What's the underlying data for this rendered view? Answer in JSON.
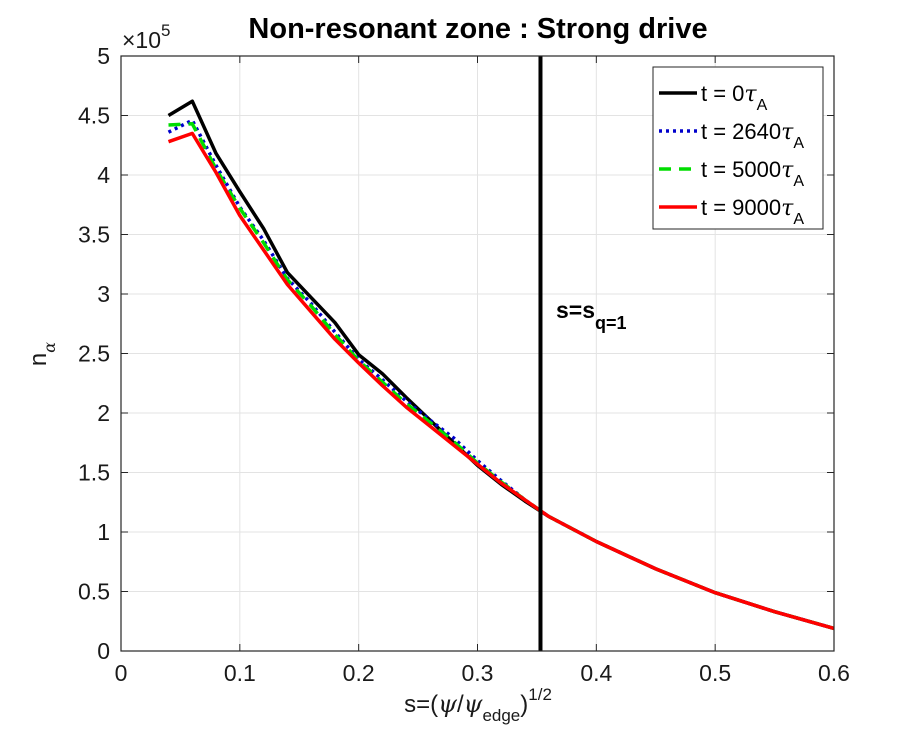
{
  "chart_data": {
    "type": "line",
    "title": "Non-resonant zone : Strong drive",
    "xlabel": {
      "base": "s=(",
      "psi": "ψ",
      "slash": "/",
      "psi2": "ψ",
      "sub": "edge",
      "close": ")",
      "sup": "1/2"
    },
    "ylabel": {
      "base": "n",
      "sub": "α"
    },
    "y_exponent": {
      "times": "×10",
      "power": "5"
    },
    "xlim": [
      0,
      0.6
    ],
    "ylim": [
      0,
      5
    ],
    "xticks": [
      0,
      0.1,
      0.2,
      0.3,
      0.4,
      0.5,
      0.6
    ],
    "xtick_labels": [
      "0",
      "0.1",
      "0.2",
      "0.3",
      "0.4",
      "0.5",
      "0.6"
    ],
    "yticks": [
      0,
      0.5,
      1,
      1.5,
      2,
      2.5,
      3,
      3.5,
      4,
      4.5,
      5
    ],
    "ytick_labels": [
      "0",
      "0.5",
      "1",
      "1.5",
      "2",
      "2.5",
      "3",
      "3.5",
      "4",
      "4.5",
      "5"
    ],
    "grid": true,
    "legend_position": "top-right",
    "vline": {
      "x": 0.353,
      "color": "#000000",
      "label_main": "s=s",
      "label_sub": "q=1"
    },
    "series": [
      {
        "name": "t = 0",
        "tau": "τ",
        "tau_sub": "A",
        "color": "#000000",
        "style": "solid",
        "x": [
          0.04,
          0.06,
          0.08,
          0.1,
          0.12,
          0.14,
          0.16,
          0.18,
          0.2,
          0.22,
          0.24,
          0.26,
          0.28,
          0.3,
          0.32,
          0.34,
          0.36,
          0.4,
          0.45,
          0.5,
          0.55,
          0.6
        ],
        "y": [
          4.5,
          4.62,
          4.18,
          3.86,
          3.55,
          3.18,
          2.97,
          2.76,
          2.49,
          2.33,
          2.13,
          1.94,
          1.75,
          1.56,
          1.4,
          1.26,
          1.13,
          0.92,
          0.69,
          0.49,
          0.33,
          0.19
        ]
      },
      {
        "name": "t = 2640",
        "tau": "τ",
        "tau_sub": "A",
        "color": "#0000cc",
        "style": "dotted",
        "x": [
          0.04,
          0.06,
          0.08,
          0.1,
          0.12,
          0.14,
          0.16,
          0.18,
          0.2,
          0.22,
          0.24,
          0.26,
          0.28,
          0.3,
          0.32,
          0.34,
          0.36,
          0.4,
          0.45,
          0.5,
          0.55,
          0.6
        ],
        "y": [
          4.36,
          4.46,
          4.08,
          3.73,
          3.45,
          3.13,
          2.92,
          2.68,
          2.45,
          2.28,
          2.1,
          1.94,
          1.79,
          1.6,
          1.43,
          1.27,
          1.13,
          0.92,
          0.69,
          0.49,
          0.33,
          0.19
        ]
      },
      {
        "name": "t = 5000",
        "tau": "τ",
        "tau_sub": "A",
        "color": "#00dd00",
        "style": "dashed",
        "x": [
          0.04,
          0.06,
          0.08,
          0.1,
          0.12,
          0.14,
          0.16,
          0.18,
          0.2,
          0.22,
          0.24,
          0.26,
          0.28,
          0.3,
          0.32,
          0.34,
          0.36,
          0.4,
          0.45,
          0.5,
          0.55,
          0.6
        ],
        "y": [
          4.42,
          4.43,
          4.05,
          3.72,
          3.43,
          3.12,
          2.9,
          2.66,
          2.44,
          2.26,
          2.08,
          1.92,
          1.76,
          1.58,
          1.42,
          1.27,
          1.13,
          0.92,
          0.69,
          0.49,
          0.33,
          0.19
        ]
      },
      {
        "name": "t = 9000",
        "tau": "τ",
        "tau_sub": "A",
        "color": "#ff0000",
        "style": "solid",
        "x": [
          0.04,
          0.06,
          0.08,
          0.1,
          0.12,
          0.14,
          0.16,
          0.18,
          0.2,
          0.22,
          0.24,
          0.26,
          0.28,
          0.3,
          0.32,
          0.34,
          0.36,
          0.4,
          0.45,
          0.5,
          0.55,
          0.6
        ],
        "y": [
          4.28,
          4.35,
          4.02,
          3.66,
          3.37,
          3.08,
          2.85,
          2.62,
          2.42,
          2.23,
          2.05,
          1.89,
          1.73,
          1.57,
          1.41,
          1.27,
          1.13,
          0.92,
          0.69,
          0.49,
          0.33,
          0.19
        ]
      }
    ]
  }
}
